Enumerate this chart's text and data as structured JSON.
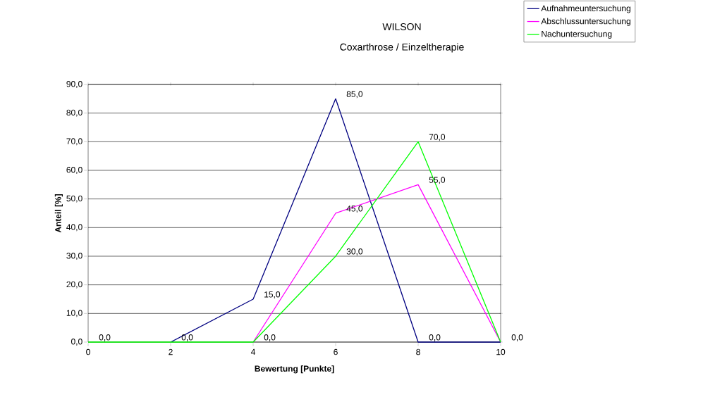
{
  "chart_data": {
    "type": "line",
    "title": "WILSON",
    "subtitle": "Coxarthrose / Einzeltherapie",
    "xlabel": "Bewertung [Punkte]",
    "ylabel": "Anteil [%]",
    "x": [
      0,
      2,
      4,
      6,
      8,
      10
    ],
    "series": [
      {
        "name": "Aufnahmeuntersuchung",
        "color": "#000080",
        "values": [
          null,
          0,
          15,
          85,
          0,
          0
        ],
        "value_labels": [
          null,
          "0,0",
          "15,0",
          "85,0",
          "0,0",
          "0,0"
        ]
      },
      {
        "name": "Abschlussuntersuchung",
        "color": "#ff00ff",
        "values": [
          null,
          null,
          0,
          45,
          55,
          0
        ],
        "value_labels": [
          null,
          null,
          "0,0",
          "45,0",
          "55,0",
          null
        ]
      },
      {
        "name": "Nachuntersuchung",
        "color": "#00ff00",
        "values": [
          0,
          0,
          0,
          30,
          70,
          0
        ],
        "value_labels": [
          "0,0",
          null,
          null,
          "30,0",
          "70,0",
          null
        ]
      }
    ],
    "xlim": [
      0,
      10
    ],
    "ylim": [
      0,
      90
    ],
    "xticks": [
      0,
      2,
      4,
      6,
      8,
      10
    ],
    "yticks": [
      {
        "value": 0,
        "label": "0,0"
      },
      {
        "value": 10,
        "label": "10,0"
      },
      {
        "value": 20,
        "label": "20,0"
      },
      {
        "value": 30,
        "label": "30,0"
      },
      {
        "value": 40,
        "label": "40,0"
      },
      {
        "value": 50,
        "label": "50,0"
      },
      {
        "value": 60,
        "label": "60,0"
      },
      {
        "value": 70,
        "label": "70,0"
      },
      {
        "value": 80,
        "label": "80,0"
      },
      {
        "value": 90,
        "label": "90,0"
      }
    ],
    "grid": "y",
    "legend": "top right"
  }
}
